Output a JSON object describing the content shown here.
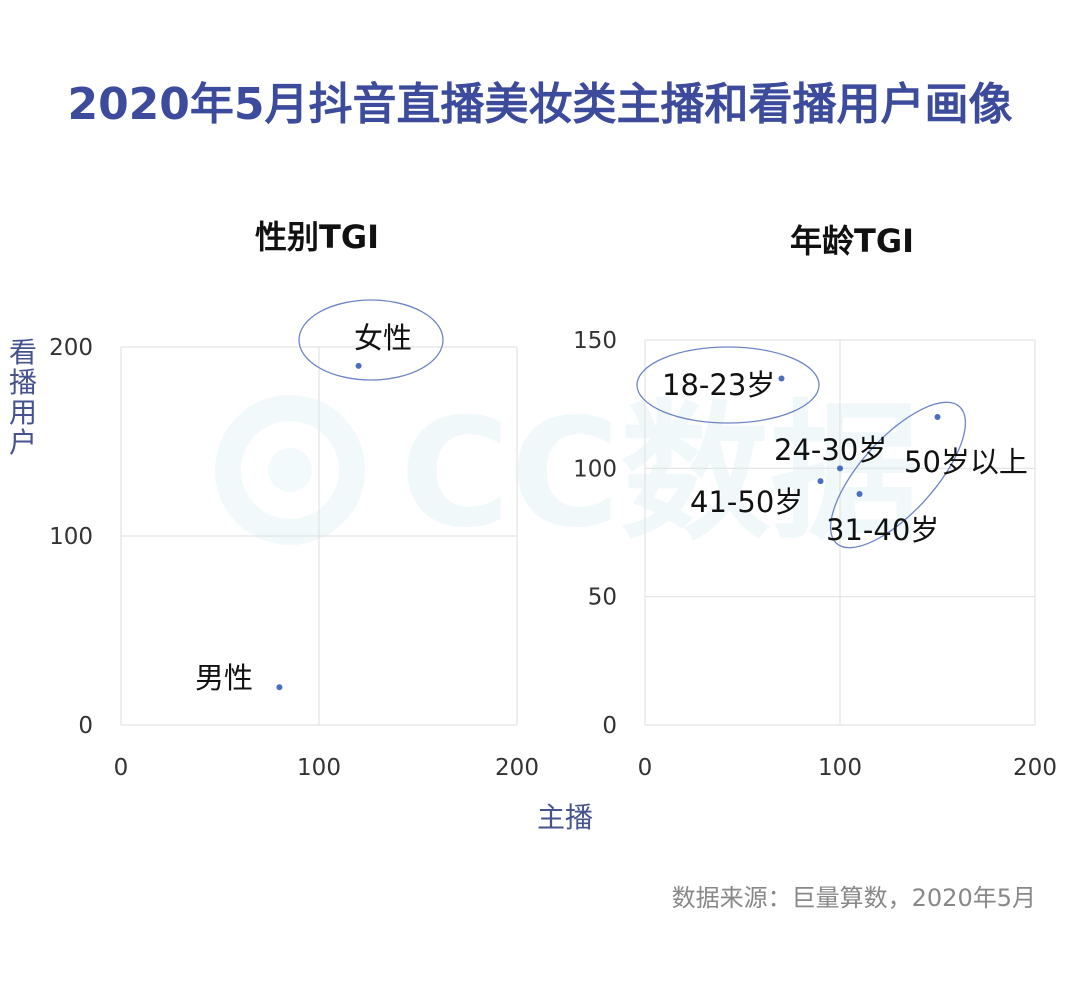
{
  "title": "2020年5月抖音直播美妆类主播和看播用户画像",
  "shared_ylabel": "看播用户",
  "shared_xlabel": "主播",
  "source": "数据来源：巨量算数，2020年5月",
  "watermark": "CC数据",
  "colors": {
    "title": "#3d4b9c",
    "axis_label": "#46538f",
    "point": "#4a6fc1",
    "highlight": "#6f85c7",
    "grid": "#e3e3e3"
  },
  "chart_data": [
    {
      "type": "scatter",
      "title": "性别TGI",
      "xlabel": "主播",
      "ylabel": "看播用户",
      "xlim": [
        0,
        200
      ],
      "ylim": [
        0,
        200
      ],
      "xticks": [
        0,
        100,
        200
      ],
      "yticks": [
        0,
        100,
        200
      ],
      "grid": true,
      "points": [
        {
          "label": "女性",
          "x": 120,
          "y": 190,
          "highlighted": true
        },
        {
          "label": "男性",
          "x": 80,
          "y": 20,
          "highlighted": false
        }
      ]
    },
    {
      "type": "scatter",
      "title": "年龄TGI",
      "xlabel": "主播",
      "ylabel": "看播用户",
      "xlim": [
        0,
        200
      ],
      "ylim": [
        0,
        150
      ],
      "xticks": [
        0,
        100,
        200
      ],
      "yticks": [
        0,
        50,
        100,
        150
      ],
      "grid": true,
      "points": [
        {
          "label": "18-23岁",
          "x": 70,
          "y": 135,
          "highlighted": true
        },
        {
          "label": "24-30岁",
          "x": 100,
          "y": 100,
          "highlighted": false
        },
        {
          "label": "41-50岁",
          "x": 90,
          "y": 95,
          "highlighted": false
        },
        {
          "label": "31-40岁",
          "x": 110,
          "y": 90,
          "highlighted": true
        },
        {
          "label": "50岁以上",
          "x": 150,
          "y": 120,
          "highlighted": true
        }
      ]
    }
  ]
}
